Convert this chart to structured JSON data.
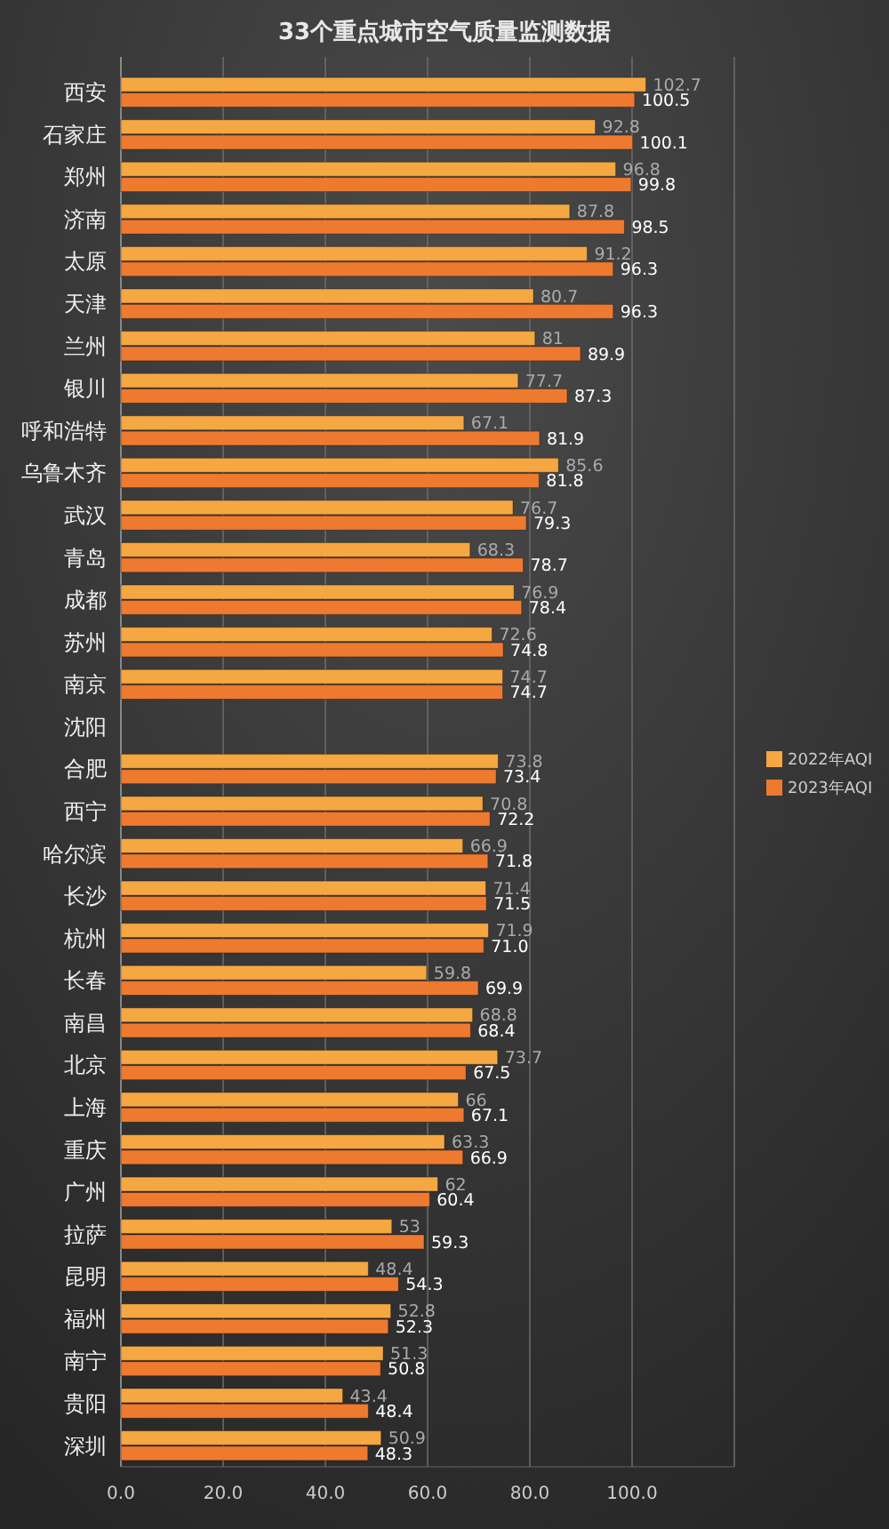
{
  "chart_data": {
    "type": "bar",
    "orientation": "horizontal",
    "title": "33个重点城市空气质量监测数据",
    "categories": [
      "西安",
      "石家庄",
      "郑州",
      "济南",
      "太原",
      "天津",
      "兰州",
      "银川",
      "呼和浩特",
      "乌鲁木齐",
      "武汉",
      "青岛",
      "成都",
      "苏州",
      "南京",
      "沈阳",
      "合肥",
      "西宁",
      "哈尔滨",
      "长沙",
      "杭州",
      "长春",
      "南昌",
      "北京",
      "上海",
      "重庆",
      "广州",
      "拉萨",
      "昆明",
      "福州",
      "南宁",
      "贵阳",
      "深圳"
    ],
    "series": [
      {
        "name": "2022年AQI",
        "color": "#f5a742",
        "values": [
          102.7,
          92.8,
          96.8,
          87.8,
          91.2,
          80.7,
          81,
          77.7,
          67.1,
          85.6,
          76.7,
          68.3,
          76.9,
          72.6,
          74.7,
          null,
          73.8,
          70.8,
          66.9,
          71.4,
          71.9,
          59.8,
          68.8,
          73.7,
          66,
          63.3,
          62,
          53,
          48.4,
          52.8,
          51.3,
          43.4,
          50.9
        ],
        "value_labels": [
          "102.7",
          "92.8",
          "96.8",
          "87.8",
          "91.2",
          "80.7",
          "81",
          "77.7",
          "67.1",
          "85.6",
          "76.7",
          "68.3",
          "76.9",
          "72.6",
          "74.7",
          null,
          "73.8",
          "70.8",
          "66.9",
          "71.4",
          "71.9",
          "59.8",
          "68.8",
          "73.7",
          "66",
          "63.3",
          "62",
          "53",
          "48.4",
          "52.8",
          "51.3",
          "43.4",
          "50.9"
        ]
      },
      {
        "name": "2023年AQI",
        "color": "#ee7a30",
        "values": [
          100.5,
          100.1,
          99.8,
          98.5,
          96.3,
          96.3,
          89.9,
          87.3,
          81.9,
          81.8,
          79.3,
          78.7,
          78.4,
          74.8,
          74.7,
          null,
          73.4,
          72.2,
          71.8,
          71.5,
          71.0,
          69.9,
          68.4,
          67.5,
          67.1,
          66.9,
          60.4,
          59.3,
          54.3,
          52.3,
          50.8,
          48.4,
          48.3
        ],
        "value_labels": [
          "100.5",
          "100.1",
          "99.8",
          "98.5",
          "96.3",
          "96.3",
          "89.9",
          "87.3",
          "81.9",
          "81.8",
          "79.3",
          "78.7",
          "78.4",
          "74.8",
          "74.7",
          null,
          "73.4",
          "72.2",
          "71.8",
          "71.5",
          "71.0",
          "69.9",
          "68.4",
          "67.5",
          "67.1",
          "66.9",
          "60.4",
          "59.3",
          "54.3",
          "52.3",
          "50.8",
          "48.4",
          "48.3"
        ]
      }
    ],
    "xlim": [
      0,
      120
    ],
    "xticks": [
      {
        "value": 0,
        "label": "0.0"
      },
      {
        "value": 20,
        "label": "20.0"
      },
      {
        "value": 40,
        "label": "40.0"
      },
      {
        "value": 60,
        "label": "60.0"
      },
      {
        "value": 80,
        "label": "80.0"
      },
      {
        "value": 100,
        "label": "100.0"
      },
      {
        "value": 120,
        "label": null
      }
    ],
    "grid": "x",
    "legend": "right"
  }
}
